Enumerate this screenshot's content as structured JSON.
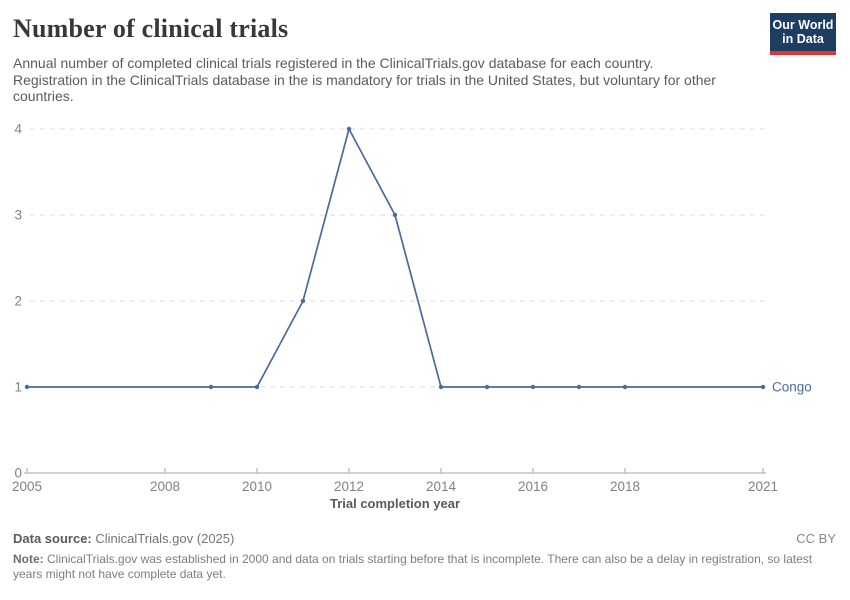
{
  "header": {
    "title": "Number of clinical trials",
    "logo": {
      "line1": "Our World",
      "line2": "in Data"
    }
  },
  "subtitle": "Annual number of completed clinical trials registered in the ClinicalTrials.gov database for each country. Registration in the ClinicalTrials database in the is mandatory for trials in the United States, but voluntary for other countries.",
  "chart_data": {
    "type": "line",
    "title": "Number of clinical trials",
    "xlabel": "Trial completion year",
    "ylabel": "",
    "xlim": [
      2005,
      2021
    ],
    "ylim": [
      0,
      4
    ],
    "x_ticks": [
      2005,
      2008,
      2010,
      2012,
      2014,
      2016,
      2018,
      2021
    ],
    "y_ticks": [
      0,
      1,
      2,
      3,
      4
    ],
    "grid": "horizontal-dashed",
    "legend_position": "end-of-line",
    "series": [
      {
        "name": "Congo",
        "color": "#4C6A9C",
        "x": [
          2005,
          2009,
          2010,
          2011,
          2012,
          2013,
          2014,
          2015,
          2016,
          2017,
          2018,
          2021
        ],
        "values": [
          1,
          1,
          1,
          2,
          4,
          3,
          1,
          1,
          1,
          1,
          1,
          1
        ]
      }
    ]
  },
  "footer": {
    "datasource_label": "Data source:",
    "datasource_value": "ClinicalTrials.gov (2025)",
    "license": "CC BY",
    "note_label": "Note:",
    "note_text": "ClinicalTrials.gov was established in 2000 and data on trials starting before that is incomplete. There can also be a delay in registration, so latest years might not have complete data yet."
  },
  "colors": {
    "series_blue": "#4C6A9C",
    "logo_background": "#1d3d63",
    "logo_bar": "#e0362e",
    "gridline": "#dcdcdc",
    "axis": "#a5a5a5",
    "tick_text": "#818181",
    "title_text": "#383838",
    "subtitle_text": "#5b5b5b"
  }
}
